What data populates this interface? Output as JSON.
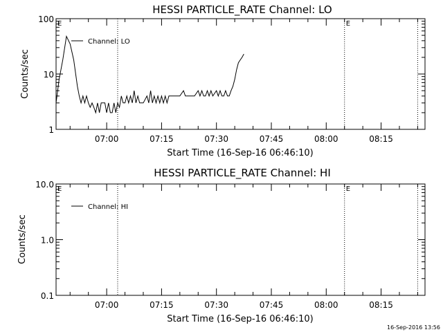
{
  "timestamp": "16-Sep-2016 13:56",
  "chart_data": [
    {
      "type": "line",
      "title": "HESSI PARTICLE_RATE Channel: LO",
      "xlabel": "Start Time (16-Sep-16 06:46:10)",
      "ylabel": "Counts/sec",
      "yscale": "log",
      "ylim": [
        1,
        100
      ],
      "y_ticks": [
        1,
        10,
        100
      ],
      "y_tick_labels": [
        "1",
        "10",
        "100"
      ],
      "xlim": [
        "06:46:10",
        "08:27:00"
      ],
      "x_ticks": [
        "07:00",
        "07:15",
        "07:30",
        "07:45",
        "08:00",
        "08:15"
      ],
      "legend": {
        "placement": "top-left",
        "entries": [
          "Channel: LO"
        ]
      },
      "markers": [
        {
          "time": "06:46:10",
          "label": "E"
        },
        {
          "time": "07:03:00",
          "label": ""
        },
        {
          "time": "08:05:00",
          "label": "E"
        },
        {
          "time": "08:25:00",
          "label": ""
        }
      ],
      "series": [
        {
          "name": "Channel: LO",
          "x": [
            "06:46:10",
            "06:47:00",
            "06:48:00",
            "06:49:00",
            "06:50:00",
            "06:51:00",
            "06:52:00",
            "06:52:30",
            "06:53:00",
            "06:53:30",
            "06:54:00",
            "06:54:30",
            "06:55:00",
            "06:55:30",
            "06:56:00",
            "06:56:30",
            "06:57:00",
            "06:57:30",
            "06:58:00",
            "06:58:30",
            "06:59:00",
            "06:59:30",
            "07:00:00",
            "07:00:30",
            "07:01:00",
            "07:01:30",
            "07:02:00",
            "07:02:30",
            "07:03:00",
            "07:03:30",
            "07:04:00",
            "07:04:30",
            "07:05:00",
            "07:05:30",
            "07:06:00",
            "07:06:30",
            "07:07:00",
            "07:07:30",
            "07:08:00",
            "07:08:30",
            "07:09:00",
            "07:09:30",
            "07:10:00",
            "07:11:00",
            "07:11:30",
            "07:12:00",
            "07:12:30",
            "07:13:00",
            "07:13:30",
            "07:14:00",
            "07:14:30",
            "07:15:00",
            "07:15:30",
            "07:16:00",
            "07:16:30",
            "07:17:00",
            "07:17:30",
            "07:18:00",
            "07:19:00",
            "07:20:00",
            "07:21:00",
            "07:21:30",
            "07:22:00",
            "07:23:00",
            "07:24:00",
            "07:25:00",
            "07:25:30",
            "07:26:00",
            "07:26:30",
            "07:27:00",
            "07:27:30",
            "07:28:00",
            "07:28:30",
            "07:29:00",
            "07:30:00",
            "07:30:30",
            "07:31:00",
            "07:31:30",
            "07:32:00",
            "07:32:30",
            "07:33:00",
            "07:33:30",
            "07:34:00",
            "07:34:30",
            "07:35:00",
            "07:35:30",
            "07:36:00",
            "07:36:30",
            "07:37:00",
            "07:37:30"
          ],
          "values": [
            3,
            8,
            18,
            48,
            35,
            18,
            6,
            4,
            3,
            4,
            3,
            4,
            3,
            2.5,
            3,
            2.5,
            2,
            3,
            2,
            3,
            3,
            3,
            2,
            3,
            2,
            2,
            3,
            2,
            3,
            2.5,
            4,
            3,
            3,
            4,
            3,
            4,
            3,
            5,
            3,
            4,
            3,
            3,
            3,
            4,
            3,
            5,
            3,
            4,
            3,
            4,
            3,
            4,
            3,
            4,
            3,
            4,
            4,
            4,
            4,
            4,
            5,
            4,
            4,
            4,
            4,
            5,
            4,
            5,
            4,
            4,
            5,
            4,
            5,
            4,
            5,
            4,
            5,
            4,
            4,
            5,
            4,
            4,
            5,
            6,
            8,
            12,
            16,
            18,
            20,
            23
          ]
        }
      ]
    },
    {
      "type": "line",
      "title": "HESSI PARTICLE_RATE Channel: HI",
      "xlabel": "Start Time (16-Sep-16 06:46:10)",
      "ylabel": "Counts/sec",
      "yscale": "log",
      "ylim": [
        0.1,
        10
      ],
      "y_ticks": [
        0.1,
        1,
        10
      ],
      "y_tick_labels": [
        "0.1",
        "1.0",
        "10.0"
      ],
      "xlim": [
        "06:46:10",
        "08:27:00"
      ],
      "x_ticks": [
        "07:00",
        "07:15",
        "07:30",
        "07:45",
        "08:00",
        "08:15"
      ],
      "legend": {
        "placement": "top-left",
        "entries": [
          "Channel: HI"
        ]
      },
      "markers": [
        {
          "time": "06:46:10",
          "label": "E"
        },
        {
          "time": "07:03:00",
          "label": ""
        },
        {
          "time": "08:05:00",
          "label": "E"
        },
        {
          "time": "08:25:00",
          "label": ""
        }
      ],
      "series": [
        {
          "name": "Channel: HI",
          "x": [],
          "values": []
        }
      ]
    }
  ]
}
